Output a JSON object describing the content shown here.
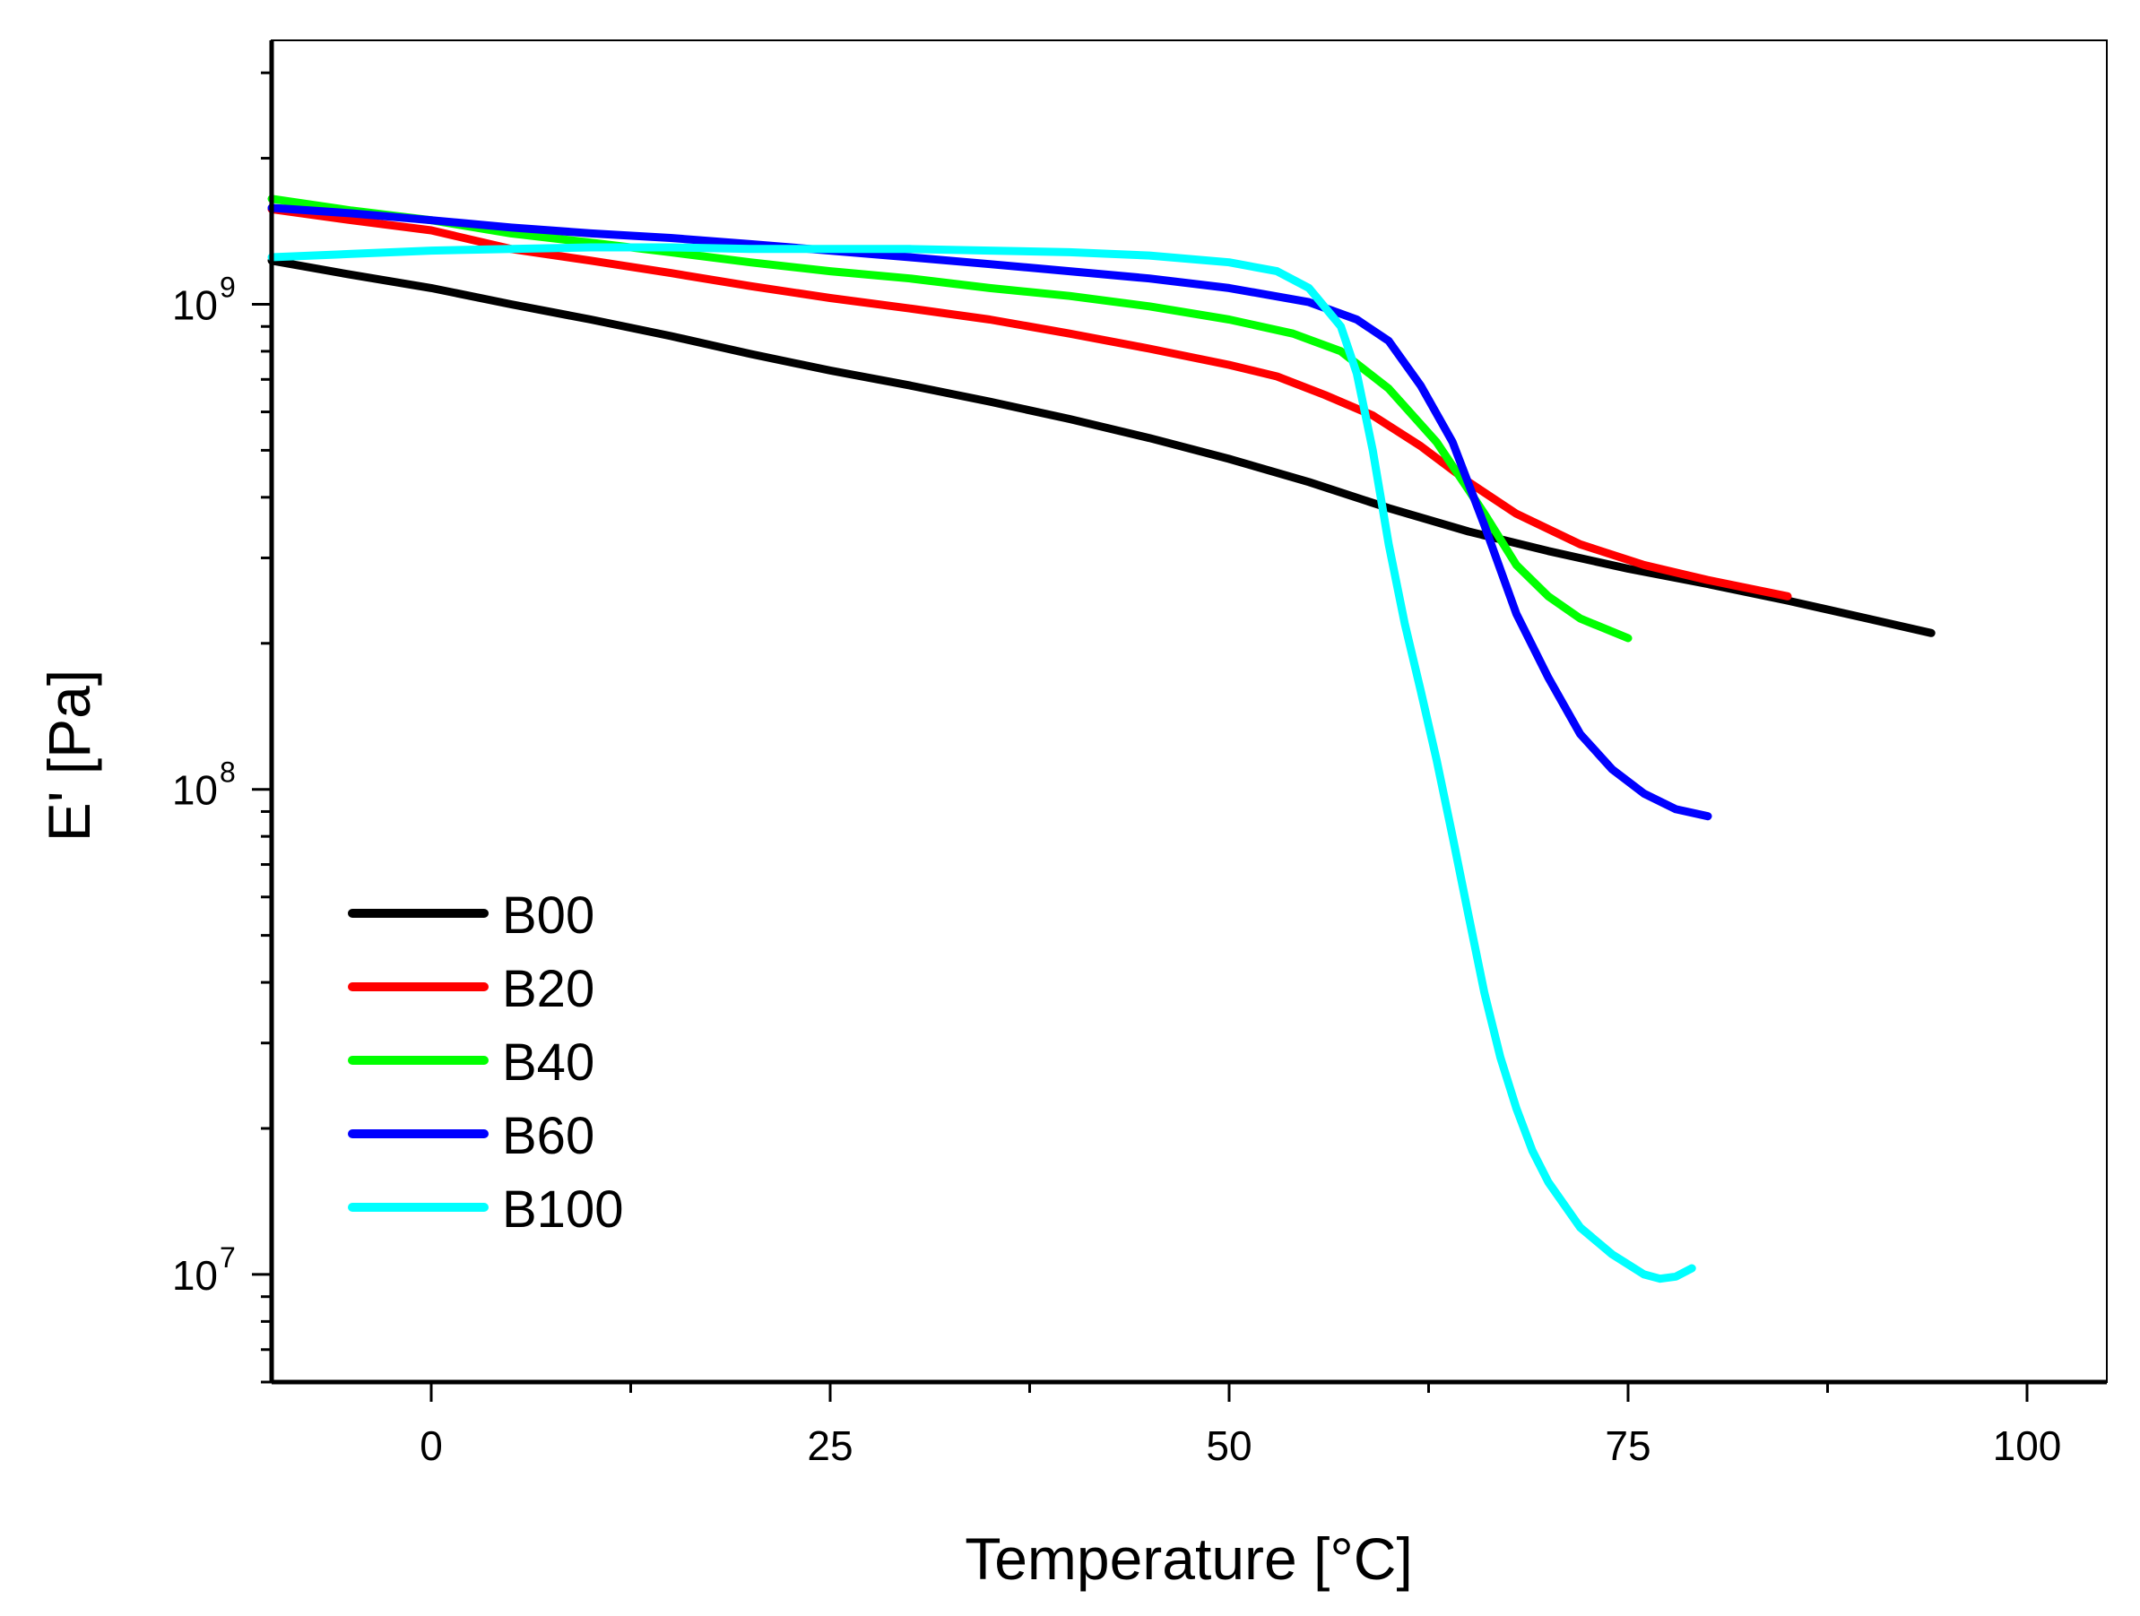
{
  "chart_data": {
    "type": "line",
    "title": "",
    "xlabel": "Temperature [°C]",
    "ylabel": "E' [Pa]",
    "xlim": [
      -10,
      105
    ],
    "ylim": [
      6000000,
      3500000000
    ],
    "yscale": "log",
    "grid": false,
    "legend_position": "bottom-left",
    "x_ticks": [
      {
        "value": 0,
        "label": "0"
      },
      {
        "value": 25,
        "label": "25"
      },
      {
        "value": 50,
        "label": "50"
      },
      {
        "value": 75,
        "label": "75"
      },
      {
        "value": 100,
        "label": "100"
      }
    ],
    "y_ticks": [
      {
        "value": 10000000,
        "base": "10",
        "exp": "7"
      },
      {
        "value": 100000000,
        "base": "10",
        "exp": "8"
      },
      {
        "value": 1000000000,
        "base": "10",
        "exp": "9"
      }
    ],
    "series": [
      {
        "name": "B00",
        "color": "#000000",
        "x": [
          -10,
          -5,
          0,
          5,
          10,
          15,
          20,
          25,
          30,
          35,
          40,
          45,
          50,
          55,
          60,
          65,
          70,
          75,
          80,
          85,
          90,
          94
        ],
        "y": [
          1230000000,
          1150000000,
          1080000000,
          1000000000,
          930000000,
          860000000,
          790000000,
          730000000,
          680000000,
          630000000,
          580000000,
          530000000,
          480000000,
          430000000,
          380000000,
          340000000,
          310000000,
          285000000,
          265000000,
          245000000,
          225000000,
          210000000
        ]
      },
      {
        "name": "B20",
        "color": "#ff0000",
        "x": [
          -10,
          -5,
          0,
          5,
          10,
          15,
          20,
          25,
          30,
          35,
          40,
          45,
          50,
          53,
          56,
          59,
          62,
          65,
          68,
          72,
          76,
          80,
          85
        ],
        "y": [
          1570000000,
          1490000000,
          1420000000,
          1300000000,
          1230000000,
          1160000000,
          1090000000,
          1030000000,
          980000000,
          930000000,
          870000000,
          810000000,
          750000000,
          710000000,
          650000000,
          590000000,
          510000000,
          430000000,
          370000000,
          320000000,
          290000000,
          270000000,
          250000000
        ]
      },
      {
        "name": "B40",
        "color": "#00ff00",
        "x": [
          -10,
          -5,
          0,
          5,
          10,
          15,
          20,
          25,
          30,
          35,
          40,
          45,
          50,
          54,
          57,
          60,
          63,
          66,
          68,
          70,
          72,
          75
        ],
        "y": [
          1650000000,
          1560000000,
          1490000000,
          1400000000,
          1340000000,
          1280000000,
          1220000000,
          1170000000,
          1130000000,
          1080000000,
          1040000000,
          990000000,
          930000000,
          870000000,
          800000000,
          670000000,
          520000000,
          370000000,
          290000000,
          250000000,
          225000000,
          205000000
        ]
      },
      {
        "name": "B60",
        "color": "#0000ff",
        "x": [
          -10,
          -5,
          0,
          5,
          10,
          15,
          20,
          25,
          30,
          35,
          40,
          45,
          50,
          55,
          58,
          60,
          62,
          64,
          66,
          68,
          70,
          72,
          74,
          76,
          78,
          80
        ],
        "y": [
          1580000000,
          1540000000,
          1490000000,
          1440000000,
          1400000000,
          1370000000,
          1330000000,
          1290000000,
          1250000000,
          1210000000,
          1170000000,
          1130000000,
          1080000000,
          1010000000,
          930000000,
          840000000,
          680000000,
          520000000,
          350000000,
          230000000,
          170000000,
          130000000,
          110000000,
          98000000,
          91000000,
          88000000
        ]
      },
      {
        "name": "B100",
        "color": "#00ffff",
        "x": [
          -10,
          -5,
          0,
          5,
          10,
          15,
          20,
          25,
          30,
          35,
          40,
          45,
          50,
          53,
          55,
          57,
          58,
          59,
          60,
          61,
          62,
          63,
          64,
          65,
          66,
          67,
          68,
          69,
          70,
          72,
          74,
          76,
          77,
          78,
          79
        ],
        "y": [
          1250000000,
          1270000000,
          1290000000,
          1300000000,
          1310000000,
          1310000000,
          1300000000,
          1300000000,
          1300000000,
          1290000000,
          1280000000,
          1260000000,
          1220000000,
          1170000000,
          1080000000,
          900000000,
          720000000,
          500000000,
          320000000,
          220000000,
          160000000,
          115000000,
          80000000,
          55000000,
          38000000,
          28000000,
          22000000,
          18000000,
          15500000,
          12500000,
          11000000,
          10000000,
          9800000,
          9900000,
          10300000
        ]
      }
    ]
  }
}
